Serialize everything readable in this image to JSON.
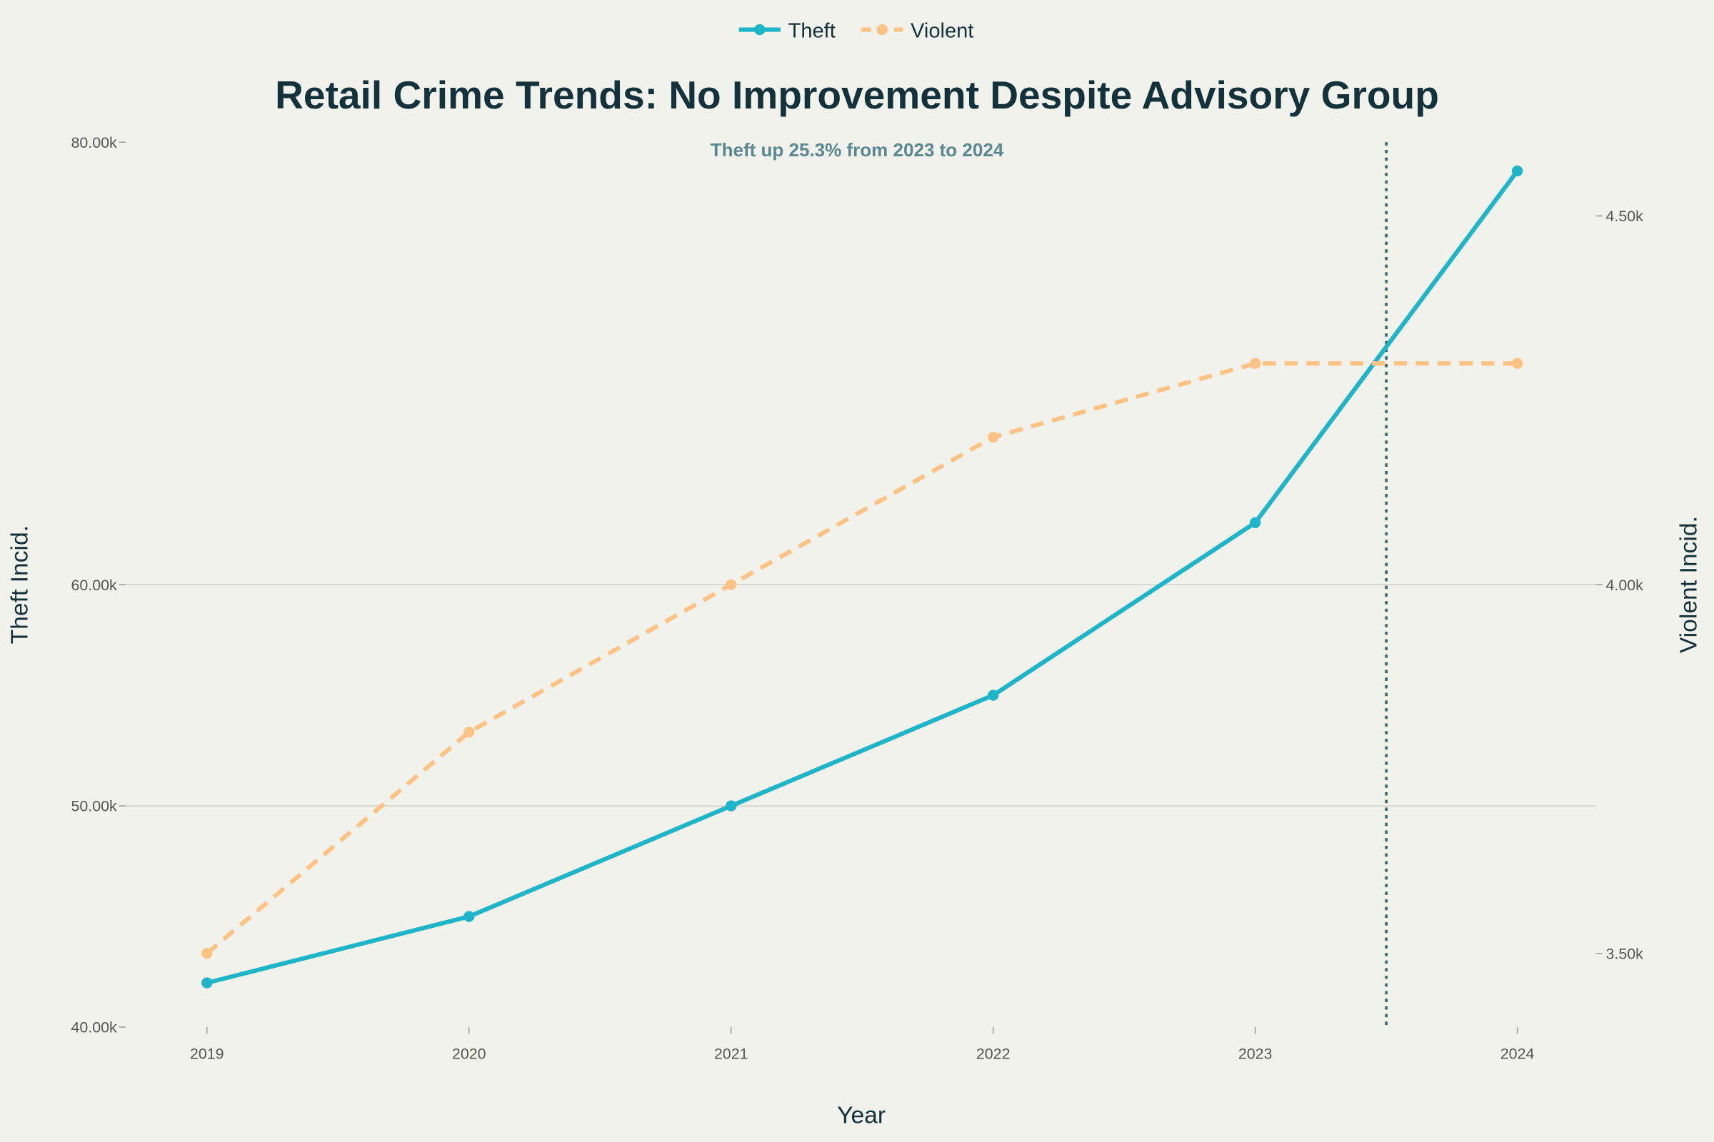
{
  "chart_data": {
    "type": "line",
    "title": "Retail Crime Trends: No Improvement Despite Advisory Group",
    "annotation": "Theft up 25.3% from 2023 to 2024",
    "xlabel": "Year",
    "ylabel": "Theft Incid.",
    "y2label": "Violent Incid.",
    "x": [
      2019,
      2020,
      2021,
      2022,
      2023,
      2024
    ],
    "xlim": [
      2018.69,
      2024.3
    ],
    "ylim": [
      40000,
      80000
    ],
    "y2lim": [
      3400,
      4600
    ],
    "yticks": [
      40000,
      50000,
      60000,
      80000
    ],
    "ytick_labels": [
      "40.00k",
      "50.00k",
      "60.00k",
      "80.00k"
    ],
    "y2ticks": [
      3500,
      4000,
      4500
    ],
    "y2tick_labels": [
      "3.50k",
      "4.00k",
      "4.50k"
    ],
    "xtick_labels": [
      "2019",
      "2020",
      "2021",
      "2022",
      "2023",
      "2024"
    ],
    "grid": true,
    "legend_position": "top-center",
    "vline_x": 2023.5,
    "series": [
      {
        "name": "Theft",
        "axis": "left",
        "values": [
          42000,
          45000,
          50000,
          55000,
          62800,
          78700
        ],
        "color": "#1fb5c9",
        "dash": "solid"
      },
      {
        "name": "Violent",
        "axis": "right",
        "values": [
          3500,
          3800,
          4000,
          4200,
          4300,
          4300
        ],
        "color": "#ffc285",
        "dash": "dashed"
      }
    ],
    "colors": {
      "title": "#13323b",
      "annotation": "#5b8790",
      "vline": "#3d6b70",
      "grid": "#cfcfc8",
      "background": "#f2f2ec"
    }
  }
}
